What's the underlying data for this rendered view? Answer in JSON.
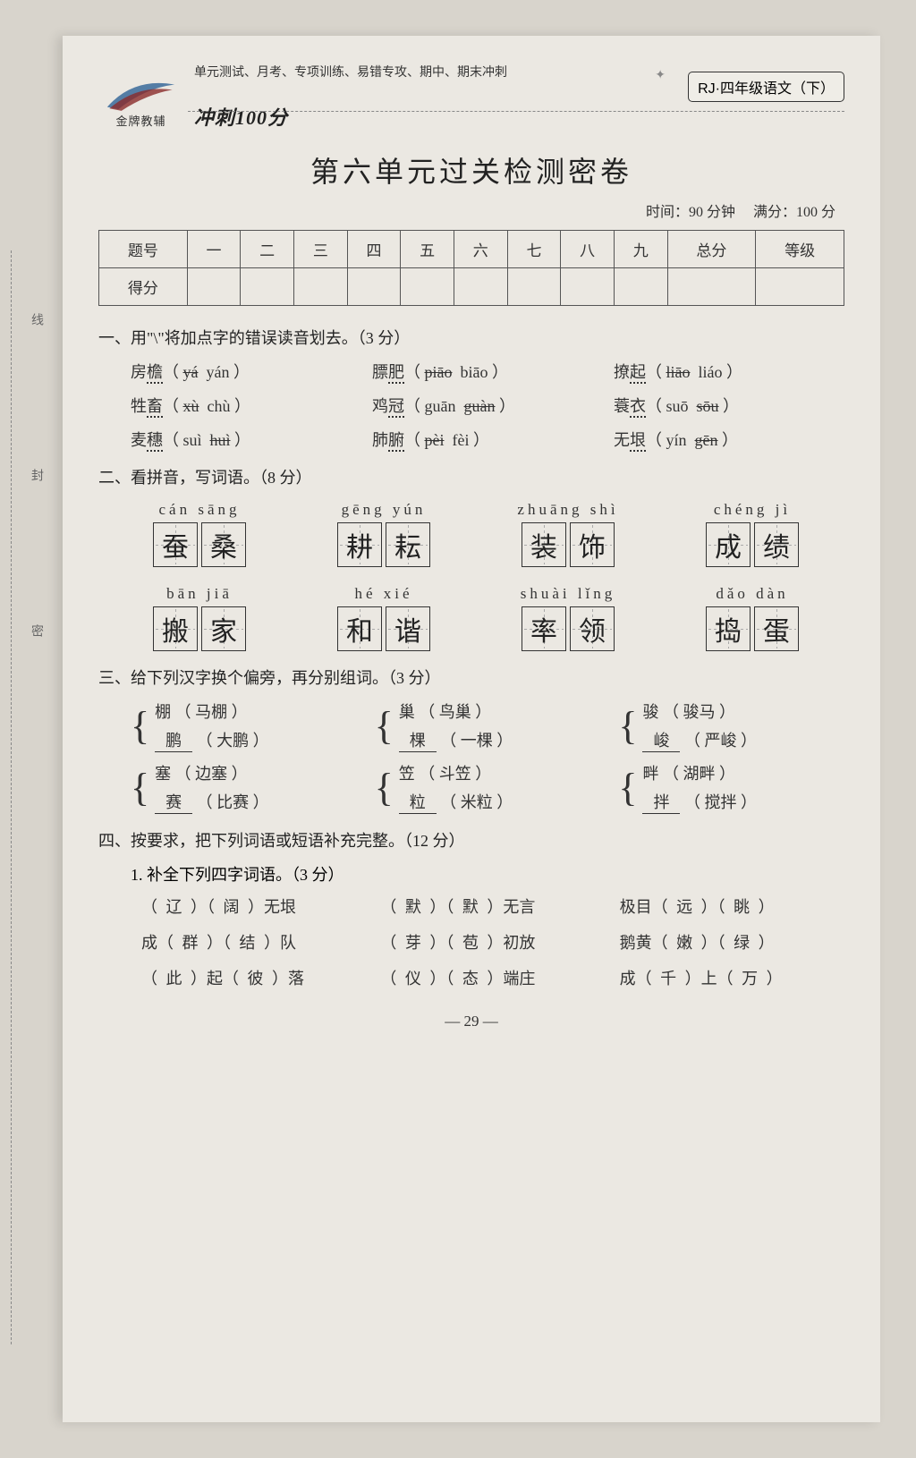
{
  "header": {
    "brand_small": "金牌教辅",
    "top_small": "单元测试、月考、专项训练、易错专攻、期中、期末冲刺",
    "chong": "冲刺100分",
    "badge": "RJ·四年级语文（下）",
    "title": "第六单元过关检测密卷",
    "meta_time": "时间：90 分钟",
    "meta_score": "满分：100 分"
  },
  "side": {
    "a": "线",
    "b": "封",
    "c": "密"
  },
  "score_table": {
    "header": [
      "题号",
      "一",
      "二",
      "三",
      "四",
      "五",
      "六",
      "七",
      "八",
      "九",
      "总分",
      "等级"
    ],
    "row_label": "得分"
  },
  "q1": {
    "title": "一、用\"\\\"将加点字的错误读音划去。（3 分）",
    "items": [
      {
        "word": "房檐",
        "a": "yá",
        "b": "yán",
        "strike": "a"
      },
      {
        "word": "膘肥",
        "a": "piāo",
        "b": "biāo",
        "strike": "a"
      },
      {
        "word": "撩起",
        "a": "liāo",
        "b": "liáo",
        "strike": "a"
      },
      {
        "word": "牲畜",
        "a": "xù",
        "b": "chù",
        "strike": "a"
      },
      {
        "word": "鸡冠",
        "a": "guān",
        "b": "guàn",
        "strike": "b"
      },
      {
        "word": "蓑衣",
        "a": "suō",
        "b": "sōu",
        "strike": "b"
      },
      {
        "word": "麦穗",
        "a": "suì",
        "b": "huì",
        "strike": "b"
      },
      {
        "word": "肺腑",
        "a": "pèi",
        "b": "fèi",
        "strike": "a"
      },
      {
        "word": "无垠",
        "a": "yín",
        "b": "gēn",
        "strike": "b"
      }
    ]
  },
  "q2": {
    "title": "二、看拼音，写词语。（8 分）",
    "items": [
      {
        "pinyin": "cán sāng",
        "chars": [
          "蚕",
          "桑"
        ]
      },
      {
        "pinyin": "gēng yún",
        "chars": [
          "耕",
          "耘"
        ]
      },
      {
        "pinyin": "zhuāng shì",
        "chars": [
          "装",
          "饰"
        ]
      },
      {
        "pinyin": "chéng jì",
        "chars": [
          "成",
          "绩"
        ]
      },
      {
        "pinyin": "bān jiā",
        "chars": [
          "搬",
          "家"
        ]
      },
      {
        "pinyin": "hé xié",
        "chars": [
          "和",
          "谐"
        ]
      },
      {
        "pinyin": "shuài lǐng",
        "chars": [
          "率",
          "领"
        ]
      },
      {
        "pinyin": "dǎo dàn",
        "chars": [
          "捣",
          "蛋"
        ]
      }
    ]
  },
  "q3": {
    "title": "三、给下列汉字换个偏旁，再分别组词。（3 分）",
    "pairs": [
      {
        "top_l": "棚",
        "top_w": "马棚",
        "bot_l": "鹏",
        "bot_w": "大鹏"
      },
      {
        "top_l": "巢",
        "top_w": "鸟巢",
        "bot_l": "棵",
        "bot_w": "一棵"
      },
      {
        "top_l": "骏",
        "top_w": "骏马",
        "bot_l": "峻",
        "bot_w": "严峻"
      },
      {
        "top_l": "塞",
        "top_w": "边塞",
        "bot_l": "赛",
        "bot_w": "比赛"
      },
      {
        "top_l": "笠",
        "top_w": "斗笠",
        "bot_l": "粒",
        "bot_w": "米粒"
      },
      {
        "top_l": "畔",
        "top_w": "湖畔",
        "bot_l": "拌",
        "bot_w": "搅拌"
      }
    ]
  },
  "q4": {
    "title": "四、按要求，把下列词语或短语补充完整。（12 分）",
    "sub1": "1. 补全下列四字词语。（3 分）",
    "rows": [
      [
        "（ 辽 ）（ 阔 ）无垠",
        "（ 默 ）（ 默 ）无言",
        "极目（ 远 ）（ 眺 ）"
      ],
      [
        "成（ 群 ）（ 结 ）队",
        "（ 芽 ）（ 苞 ）初放",
        "鹅黄（ 嫩 ）（ 绿 ）"
      ],
      [
        "（ 此 ）起（ 彼 ）落",
        "（ 仪 ）（ 态 ）端庄",
        "成（ 千 ）上（ 万 ）"
      ]
    ]
  },
  "footer": "— 29 —"
}
